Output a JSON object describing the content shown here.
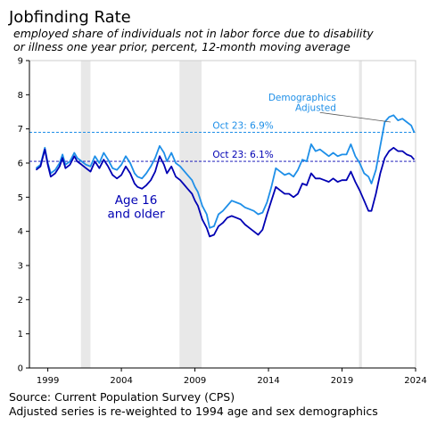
{
  "colors": {
    "adjusted": "#1e8fe8",
    "unadjusted": "#0000b3",
    "recession": "#e8e8e8",
    "axis": "#cccccc"
  },
  "chart_data": {
    "type": "line",
    "title": "Jobfinding Rate",
    "subtitle": [
      "employed share of individuals not in labor force due to disability",
      "or illness one year prior, percent, 12-month moving average"
    ],
    "xlabel": "",
    "ylabel": "",
    "xlim": [
      1997.75,
      2024.0
    ],
    "ylim": [
      0,
      9
    ],
    "xticks": [
      1999,
      2004,
      2009,
      2014,
      2019,
      2024
    ],
    "yticks": [
      0,
      1,
      2,
      3,
      4,
      5,
      6,
      7,
      8,
      9
    ],
    "recessions": [
      [
        2001.25,
        2001.9
      ],
      [
        2007.95,
        2009.45
      ],
      [
        2020.15,
        2020.35
      ]
    ],
    "series": [
      {
        "name": "Demographics Adjusted",
        "x": [
          1998.2,
          1998.5,
          1998.8,
          1999.0,
          1999.2,
          1999.5,
          1999.8,
          2000.0,
          2000.2,
          2000.5,
          2000.8,
          2001.0,
          2001.3,
          2001.6,
          2001.9,
          2002.2,
          2002.5,
          2002.8,
          2003.1,
          2003.4,
          2003.7,
          2004.0,
          2004.3,
          2004.6,
          2004.9,
          2005.1,
          2005.4,
          2005.7,
          2006.0,
          2006.3,
          2006.6,
          2006.9,
          2007.1,
          2007.4,
          2007.7,
          2008.0,
          2008.2,
          2008.5,
          2008.8,
          2009.0,
          2009.2,
          2009.5,
          2009.8,
          2010.0,
          2010.3,
          2010.6,
          2010.9,
          2011.2,
          2011.5,
          2011.8,
          2012.1,
          2012.4,
          2012.7,
          2013.0,
          2013.3,
          2013.6,
          2013.9,
          2014.2,
          2014.5,
          2014.8,
          2015.1,
          2015.4,
          2015.7,
          2016.0,
          2016.3,
          2016.6,
          2016.9,
          2017.2,
          2017.5,
          2017.8,
          2018.1,
          2018.4,
          2018.7,
          2019.0,
          2019.3,
          2019.6,
          2019.9,
          2020.2,
          2020.5,
          2020.8,
          2021.0,
          2021.3,
          2021.6,
          2021.9,
          2022.2,
          2022.5,
          2022.8,
          2023.1,
          2023.4,
          2023.7,
          2023.9
        ],
        "values": [
          5.85,
          5.95,
          6.45,
          6.0,
          5.7,
          5.8,
          6.0,
          6.25,
          5.95,
          6.05,
          6.3,
          6.15,
          6.05,
          5.95,
          5.9,
          6.2,
          6.0,
          6.3,
          6.1,
          5.85,
          5.8,
          5.95,
          6.2,
          6.0,
          5.7,
          5.6,
          5.55,
          5.7,
          5.9,
          6.15,
          6.5,
          6.3,
          6.05,
          6.3,
          6.0,
          5.9,
          5.8,
          5.65,
          5.5,
          5.3,
          5.15,
          4.75,
          4.5,
          4.1,
          4.15,
          4.5,
          4.6,
          4.75,
          4.9,
          4.85,
          4.8,
          4.7,
          4.65,
          4.6,
          4.5,
          4.55,
          4.85,
          5.3,
          5.85,
          5.75,
          5.65,
          5.7,
          5.6,
          5.8,
          6.1,
          6.05,
          6.55,
          6.35,
          6.4,
          6.3,
          6.2,
          6.3,
          6.2,
          6.25,
          6.25,
          6.55,
          6.2,
          6.0,
          5.7,
          5.6,
          5.4,
          5.8,
          6.5,
          7.2,
          7.35,
          7.4,
          7.25,
          7.3,
          7.2,
          7.1,
          6.9
        ]
      },
      {
        "name": "Age 16 and older",
        "x": [
          1998.2,
          1998.5,
          1998.8,
          1999.0,
          1999.2,
          1999.5,
          1999.8,
          2000.0,
          2000.2,
          2000.5,
          2000.8,
          2001.0,
          2001.3,
          2001.6,
          2001.9,
          2002.2,
          2002.5,
          2002.8,
          2003.1,
          2003.4,
          2003.7,
          2004.0,
          2004.3,
          2004.6,
          2004.9,
          2005.1,
          2005.4,
          2005.7,
          2006.0,
          2006.3,
          2006.6,
          2006.9,
          2007.1,
          2007.4,
          2007.7,
          2008.0,
          2008.2,
          2008.5,
          2008.8,
          2009.0,
          2009.2,
          2009.5,
          2009.8,
          2010.0,
          2010.3,
          2010.6,
          2010.9,
          2011.2,
          2011.5,
          2011.8,
          2012.1,
          2012.4,
          2012.7,
          2013.0,
          2013.3,
          2013.6,
          2013.9,
          2014.2,
          2014.5,
          2014.8,
          2015.1,
          2015.4,
          2015.7,
          2016.0,
          2016.3,
          2016.6,
          2016.9,
          2017.2,
          2017.5,
          2017.8,
          2018.1,
          2018.4,
          2018.7,
          2019.0,
          2019.3,
          2019.6,
          2019.9,
          2020.2,
          2020.5,
          2020.8,
          2021.0,
          2021.3,
          2021.6,
          2021.9,
          2022.2,
          2022.5,
          2022.8,
          2023.1,
          2023.4,
          2023.7,
          2023.9
        ],
        "values": [
          5.8,
          5.9,
          6.4,
          5.95,
          5.6,
          5.7,
          5.9,
          6.15,
          5.85,
          5.95,
          6.2,
          6.05,
          5.95,
          5.85,
          5.75,
          6.05,
          5.85,
          6.1,
          5.9,
          5.65,
          5.55,
          5.65,
          5.9,
          5.7,
          5.4,
          5.3,
          5.25,
          5.35,
          5.5,
          5.75,
          6.2,
          5.95,
          5.7,
          5.9,
          5.6,
          5.5,
          5.4,
          5.25,
          5.1,
          4.9,
          4.75,
          4.35,
          4.1,
          3.85,
          3.9,
          4.15,
          4.25,
          4.4,
          4.45,
          4.4,
          4.35,
          4.2,
          4.1,
          4.0,
          3.9,
          4.05,
          4.5,
          4.9,
          5.3,
          5.2,
          5.1,
          5.1,
          5.0,
          5.1,
          5.4,
          5.35,
          5.7,
          5.55,
          5.55,
          5.5,
          5.45,
          5.55,
          5.45,
          5.5,
          5.5,
          5.75,
          5.45,
          5.2,
          4.9,
          4.6,
          4.6,
          5.1,
          5.7,
          6.15,
          6.35,
          6.45,
          6.35,
          6.35,
          6.25,
          6.2,
          6.1
        ]
      }
    ],
    "annotations": {
      "adjusted_line_value": 6.9,
      "adjusted_line_label": "Oct 23: 6.9%",
      "unadjusted_line_value": 6.05,
      "unadjusted_line_label": "Oct 23: 6.1%",
      "adjusted_series_label": [
        "Demographics",
        "Adjusted"
      ],
      "unadjusted_series_label": [
        "Age 16",
        "and older"
      ]
    }
  },
  "footer": {
    "source": "Source: Current Population Survey (CPS)",
    "note": "Adjusted series is re-weighted to 1994 age and sex demographics"
  }
}
